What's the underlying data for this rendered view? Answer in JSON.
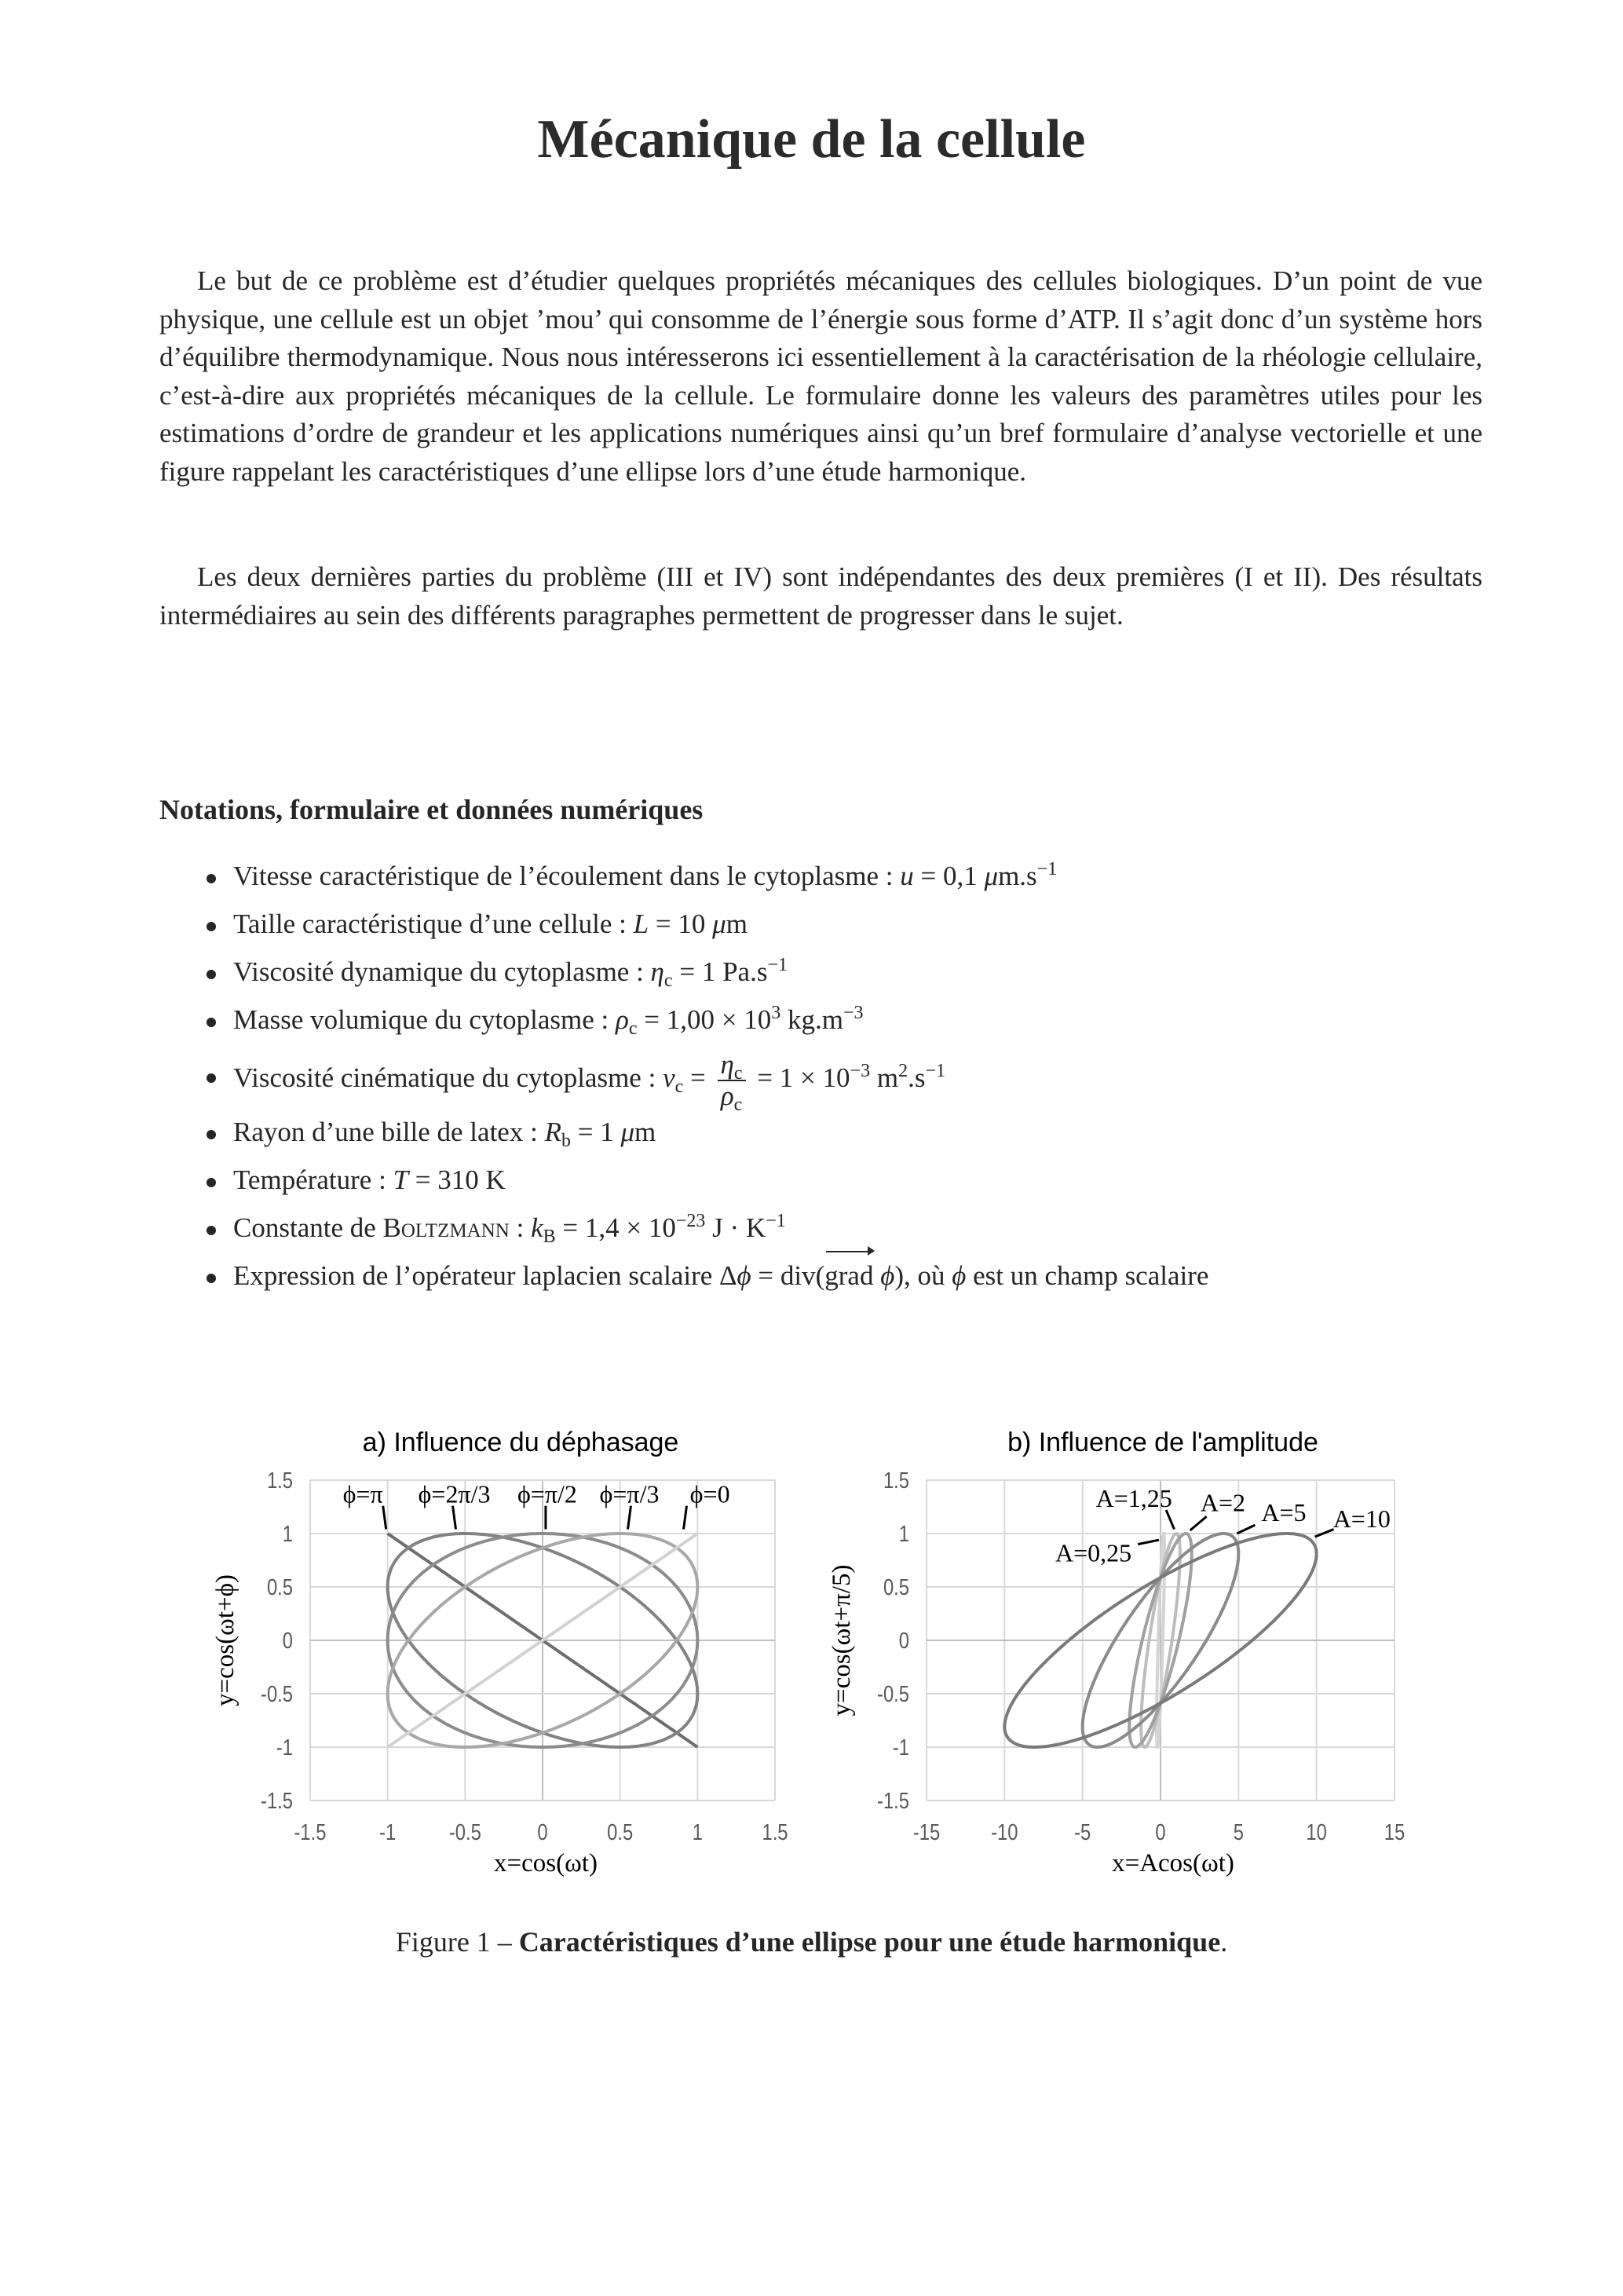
{
  "title": "Mécanique de la cellule",
  "intro": {
    "paragraph1": "Le but de ce problème est d’étudier quelques propriétés mécaniques des cellules biologiques. D’un point de vue physique, une cellule est un objet ’mou’ qui consomme de l’énergie sous forme d’ATP. Il s’agit donc d’un système hors d’équilibre thermodynamique. Nous nous intéresserons ici essentiellement à la caractérisation de la rhéologie cellulaire, c’est-à-dire aux propriétés mécaniques de la cellule. Le formulaire donne les valeurs des paramètres utiles pour les estimations d’ordre de grandeur et les applications numériques ainsi qu’un bref formulaire d’analyse vectorielle et une figure rappelant les caractéristiques d’une ellipse lors d’une étude harmonique.",
    "paragraph2": "Les deux dernières parties du problème (III et IV) sont indépendantes des deux premières (I et II). Des résultats intermédiaires au sein des différents paragraphes permettent de progresser dans le sujet."
  },
  "section": {
    "heading": "Notations, formulaire et données numériques",
    "bullets": [
      [
        [
          "t",
          "Vitesse caractéristique de l’écoulement dans le cytoplasme : "
        ],
        [
          "i",
          "u"
        ],
        [
          "t",
          " = 0,1 "
        ],
        [
          "i",
          "μ"
        ],
        [
          "t",
          "m.s"
        ],
        [
          "sup",
          "−1"
        ]
      ],
      [
        [
          "t",
          "Taille caractéristique d’une cellule : "
        ],
        [
          "i",
          "L"
        ],
        [
          "t",
          " = 10 "
        ],
        [
          "i",
          "μ"
        ],
        [
          "t",
          "m"
        ]
      ],
      [
        [
          "t",
          "Viscosité dynamique du cytoplasme : "
        ],
        [
          "i",
          "η"
        ],
        [
          "sub",
          "c"
        ],
        [
          "t",
          " = 1 Pa.s"
        ],
        [
          "sup",
          "−1"
        ]
      ],
      [
        [
          "t",
          "Masse volumique du cytoplasme : "
        ],
        [
          "i",
          "ρ"
        ],
        [
          "sub",
          "c"
        ],
        [
          "t",
          " = 1,00 × 10"
        ],
        [
          "sup",
          "3"
        ],
        [
          "t",
          " kg.m"
        ],
        [
          "sup",
          "−3"
        ]
      ],
      [
        [
          "t",
          "Viscosité cinématique du cytoplasme : "
        ],
        [
          "i",
          "ν"
        ],
        [
          "sub",
          "c"
        ],
        [
          "t",
          " = "
        ],
        [
          "frac",
          "η",
          "c",
          "ρ",
          "c"
        ],
        [
          "t",
          " = 1 × 10"
        ],
        [
          "sup",
          "−3"
        ],
        [
          "t",
          " m"
        ],
        [
          "sup",
          "2"
        ],
        [
          "t",
          ".s"
        ],
        [
          "sup",
          "−1"
        ]
      ],
      [
        [
          "t",
          "Rayon d’une bille de latex : "
        ],
        [
          "i",
          "R"
        ],
        [
          "sub",
          "b"
        ],
        [
          "t",
          " = 1 "
        ],
        [
          "i",
          "μ"
        ],
        [
          "t",
          "m"
        ]
      ],
      [
        [
          "t",
          "Température : "
        ],
        [
          "i",
          "T"
        ],
        [
          "t",
          " = 310 K"
        ]
      ],
      [
        [
          "t",
          "Constante de "
        ],
        [
          "sc",
          "Boltzmann"
        ],
        [
          "t",
          " : "
        ],
        [
          "i",
          "k"
        ],
        [
          "sub",
          "B"
        ],
        [
          "t",
          " = 1,4 × 10"
        ],
        [
          "sup",
          "−23"
        ],
        [
          "t",
          " J · K"
        ],
        [
          "sup",
          "−1"
        ]
      ],
      [
        [
          "t",
          "Expression de l’opérateur laplacien scalaire Δ"
        ],
        [
          "i",
          "ϕ"
        ],
        [
          "t",
          " = div("
        ],
        [
          "vec",
          "grad"
        ],
        [
          "t",
          " "
        ],
        [
          "i",
          "ϕ"
        ],
        [
          "t",
          "), où "
        ],
        [
          "i",
          "ϕ"
        ],
        [
          "t",
          " est un champ scalaire"
        ]
      ]
    ]
  },
  "figure": {
    "caption_prefix": "Figure 1 – ",
    "caption_bold": "Caractéristiques d’une ellipse pour une étude harmonique",
    "caption_suffix": "."
  },
  "chart_data": [
    {
      "type": "line",
      "title": "a) Influence du déphasage",
      "xlabel": "x=cos(ωt)",
      "ylabel": "y=cos(ωt+ϕ)",
      "xlim": [
        -1.5,
        1.5
      ],
      "ylim": [
        -1.5,
        1.5
      ],
      "xticks": [
        "-1.5",
        "-1",
        "-0.5",
        "0",
        "0.5",
        "1",
        "1.5"
      ],
      "yticks": [
        "1.5",
        "1",
        "0.5",
        "0",
        "-0.5",
        "-1",
        "-1.5"
      ],
      "grid": true,
      "series": [
        {
          "name": "ϕ=π",
          "phase_rad": 3.14159,
          "amplitude": 1,
          "color": "#6e6e6e"
        },
        {
          "name": "ϕ=2π/3",
          "phase_rad": 2.0944,
          "amplitude": 1,
          "color": "#828282"
        },
        {
          "name": "ϕ=π/2",
          "phase_rad": 1.5708,
          "amplitude": 1,
          "color": "#8c8c8c"
        },
        {
          "name": "ϕ=π/3",
          "phase_rad": 1.0472,
          "amplitude": 1,
          "color": "#a8a8a8"
        },
        {
          "name": "ϕ=0",
          "phase_rad": 0,
          "amplitude": 1,
          "color": "#d2d2d2"
        }
      ]
    },
    {
      "type": "line",
      "title": "b) Influence de l'amplitude",
      "xlabel": "x=Acos(ωt)",
      "ylabel": "y=cos(ωt+π/5)",
      "xlim": [
        -15,
        15
      ],
      "ylim": [
        -1.5,
        1.5
      ],
      "xticks": [
        "-15",
        "-10",
        "-5",
        "0",
        "5",
        "10",
        "15"
      ],
      "yticks": [
        "1.5",
        "1",
        "0.5",
        "0",
        "-0.5",
        "-1",
        "-1.5"
      ],
      "grid": true,
      "series": [
        {
          "name": "A=0,25",
          "phase_rad": 0.62832,
          "amplitude": 0.25,
          "color": "#d4d4d4"
        },
        {
          "name": "A=1,25",
          "phase_rad": 0.62832,
          "amplitude": 1.25,
          "color": "#bdbdbd"
        },
        {
          "name": "A=2",
          "phase_rad": 0.62832,
          "amplitude": 2,
          "color": "#a0a0a0"
        },
        {
          "name": "A=5",
          "phase_rad": 0.62832,
          "amplitude": 5,
          "color": "#8a8a8a"
        },
        {
          "name": "A=10",
          "phase_rad": 0.62832,
          "amplitude": 10,
          "color": "#7a7a7a"
        }
      ]
    }
  ]
}
